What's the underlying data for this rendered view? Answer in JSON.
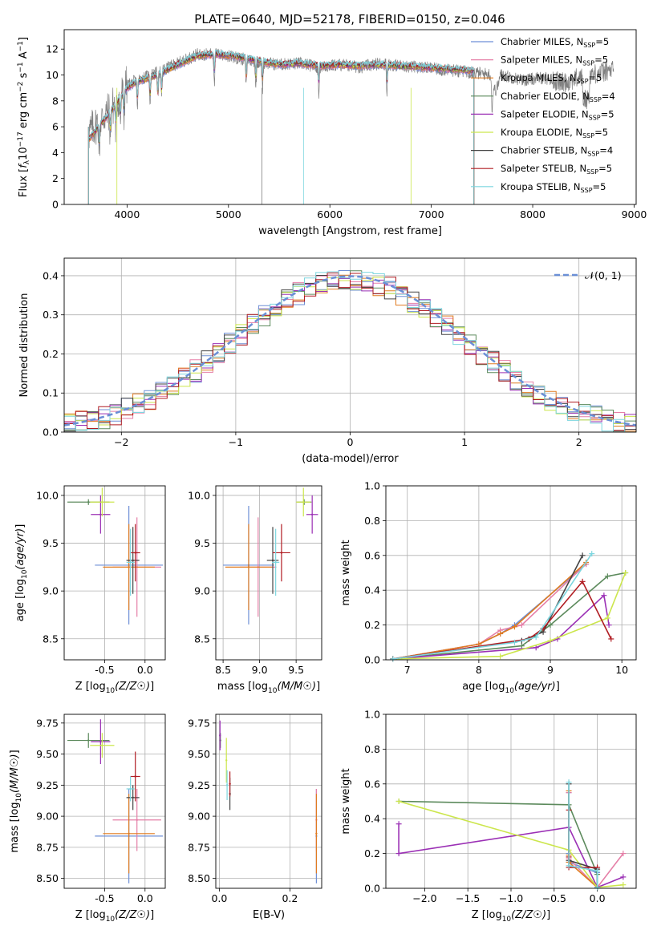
{
  "figure_title": "PLATE=0640, MJD=52178, FIBERID=0150, z=0.046",
  "model_colors": {
    "Chabrier MILES": "#6e8fd6",
    "Salpeter MILES": "#e57fa7",
    "Kroupa MILES": "#e07b20",
    "Chabrier ELODIE": "#5c8a5c",
    "Salpeter ELODIE": "#9b30b5",
    "Kroupa ELODIE": "#cce64d",
    "Chabrier STELIB": "#444444",
    "Salpeter STELIB": "#b01c22",
    "Kroupa STELIB": "#7dd6df"
  },
  "chart_data": [
    {
      "id": "spectrum",
      "type": "line",
      "title": "PLATE=0640, MJD=52178, FIBERID=0150, z=0.046",
      "xlabel": "wavelength [Angstrom, rest frame]",
      "ylabel": "Flux [f_λ 10^-17 erg cm^-2 s^-1 A^-1]",
      "xlim": [
        3380,
        9020
      ],
      "ylim": [
        0,
        13.5
      ],
      "xticks": [
        4000,
        5000,
        6000,
        7000,
        8000,
        9000
      ],
      "yticks": [
        0,
        2,
        4,
        6,
        8,
        10,
        12
      ],
      "legend_position": "upper right",
      "legend": [
        {
          "label": "Chabrier MILES, N",
          "sub": "SSP",
          "eq": "=5"
        },
        {
          "label": "Salpeter MILES, N",
          "sub": "SSP",
          "eq": "=5"
        },
        {
          "label": "Kroupa MILES, N",
          "sub": "SSP",
          "eq": "=5"
        },
        {
          "label": "Chabrier ELODIE, N",
          "sub": "SSP",
          "eq": "=4"
        },
        {
          "label": "Salpeter ELODIE, N",
          "sub": "SSP",
          "eq": "=5"
        },
        {
          "label": "Kroupa ELODIE, N",
          "sub": "SSP",
          "eq": "=5"
        },
        {
          "label": "Chabrier STELIB, N",
          "sub": "SSP",
          "eq": "=4"
        },
        {
          "label": "Salpeter STELIB, N",
          "sub": "SSP",
          "eq": "=5"
        },
        {
          "label": "Kroupa STELIB, N",
          "sub": "SSP",
          "eq": "=5"
        }
      ],
      "observed_spectrum_envelope": {
        "x": [
          3620,
          3700,
          3800,
          3900,
          4000,
          4100,
          4300,
          4500,
          4700,
          4900,
          5100,
          5300,
          5500,
          5700,
          5900,
          6100,
          6300,
          6500,
          6700,
          6900,
          7100,
          7300,
          7500,
          7700,
          7900,
          8100,
          8300,
          8500,
          8800
        ],
        "y": [
          5.5,
          6.2,
          7.0,
          8.0,
          9.2,
          9.6,
          10.2,
          10.9,
          11.6,
          11.6,
          11.3,
          11.0,
          10.8,
          10.9,
          10.6,
          10.8,
          10.6,
          10.9,
          10.7,
          10.6,
          10.4,
          10.3,
          10.1,
          10.0,
          9.6,
          9.8,
          9.4,
          9.9,
          10.4
        ]
      },
      "model_fit": {
        "x": [
          3620,
          3700,
          3800,
          3900,
          4000,
          4100,
          4300,
          4500,
          4700,
          4900,
          5100,
          5300,
          5500,
          5700,
          5900,
          6100,
          6300,
          6500,
          6700,
          6900,
          7100,
          7300,
          7420
        ],
        "y": [
          5.0,
          5.8,
          6.8,
          7.8,
          9.0,
          9.5,
          10.0,
          10.8,
          11.5,
          11.6,
          11.4,
          11.1,
          10.8,
          10.9,
          10.7,
          10.8,
          10.7,
          10.8,
          10.7,
          10.6,
          10.5,
          10.4,
          10.3
        ]
      },
      "x_range_models": [
        3620,
        7420
      ],
      "x_range_observed": [
        3620,
        8800
      ]
    },
    {
      "id": "residuals",
      "type": "line",
      "xlabel": "(data-model)/error",
      "ylabel": "Normed distribution",
      "xlim": [
        -2.5,
        2.5
      ],
      "ylim": [
        0,
        0.445
      ],
      "xticks": [
        -2,
        -1,
        0,
        1,
        2
      ],
      "yticks": [
        0.0,
        0.1,
        0.2,
        0.3,
        0.4
      ],
      "grid": true,
      "legend_position": "upper right",
      "legend_label": "𝒩(0, 1)",
      "reference_curve": "normal(0,1)",
      "histogram_bin_width": 0.1,
      "histogram_range": [
        -2.5,
        2.5
      ],
      "series_style": "step histograms, one per model (9 models)"
    },
    {
      "id": "age_vs_z",
      "type": "scatter",
      "xlabel": "Z [log10(Z/Z☉)]",
      "ylabel": "age [log10(age/yr)]",
      "xlim": [
        -1.0,
        0.25
      ],
      "ylim": [
        8.28,
        10.1
      ],
      "xticks": [
        -0.5,
        0.0
      ],
      "yticks": [
        8.5,
        9.0,
        9.5,
        10.0
      ],
      "grid": true,
      "points": [
        {
          "model": "Chabrier MILES",
          "x": -0.2,
          "y": 9.27,
          "xerr": 0.42,
          "yerr": 0.62
        },
        {
          "model": "Salpeter MILES",
          "x": -0.1,
          "y": 9.25,
          "xerr": 0.3,
          "yerr": 0.52
        },
        {
          "model": "Kroupa MILES",
          "x": -0.2,
          "y": 9.25,
          "xerr": 0.32,
          "yerr": 0.45
        },
        {
          "model": "Chabrier ELODIE",
          "x": -0.7,
          "y": 9.93,
          "xerr": 0.26,
          "yerr": 0.03
        },
        {
          "model": "Salpeter ELODIE",
          "x": -0.55,
          "y": 9.8,
          "xerr": 0.12,
          "yerr": 0.2
        },
        {
          "model": "Kroupa ELODIE",
          "x": -0.53,
          "y": 9.93,
          "xerr": 0.15,
          "yerr": 0.15
        },
        {
          "model": "Chabrier STELIB",
          "x": -0.15,
          "y": 9.32,
          "xerr": 0.08,
          "yerr": 0.35
        },
        {
          "model": "Salpeter STELIB",
          "x": -0.12,
          "y": 9.4,
          "xerr": 0.06,
          "yerr": 0.3
        },
        {
          "model": "Kroupa STELIB",
          "x": -0.18,
          "y": 9.3,
          "xerr": 0.05,
          "yerr": 0.35
        }
      ]
    },
    {
      "id": "age_vs_mass",
      "type": "scatter",
      "xlabel": "mass [log10(M/M☉)]",
      "ylabel": "",
      "xlim": [
        8.4,
        9.85
      ],
      "ylim": [
        8.28,
        10.1
      ],
      "xticks": [
        8.5,
        9.0,
        9.5
      ],
      "yticks": [
        8.5,
        9.0,
        9.5,
        10.0
      ],
      "grid": true,
      "points": [
        {
          "model": "Chabrier MILES",
          "x": 8.85,
          "y": 9.27,
          "xerr": 0.35,
          "yerr": 0.62
        },
        {
          "model": "Salpeter MILES",
          "x": 8.98,
          "y": 9.25,
          "xerr": 0.25,
          "yerr": 0.52
        },
        {
          "model": "Kroupa MILES",
          "x": 8.85,
          "y": 9.25,
          "xerr": 0.32,
          "yerr": 0.45
        },
        {
          "model": "Chabrier ELODIE",
          "x": 9.61,
          "y": 9.93,
          "xerr": 0.1,
          "yerr": 0.03
        },
        {
          "model": "Salpeter ELODIE",
          "x": 9.72,
          "y": 9.8,
          "xerr": 0.08,
          "yerr": 0.2
        },
        {
          "model": "Kroupa ELODIE",
          "x": 9.6,
          "y": 9.93,
          "xerr": 0.1,
          "yerr": 0.15
        },
        {
          "model": "Chabrier STELIB",
          "x": 9.18,
          "y": 9.32,
          "xerr": 0.08,
          "yerr": 0.35
        },
        {
          "model": "Salpeter STELIB",
          "x": 9.3,
          "y": 9.4,
          "xerr": 0.12,
          "yerr": 0.3
        },
        {
          "model": "Kroupa STELIB",
          "x": 9.22,
          "y": 9.3,
          "xerr": 0.05,
          "yerr": 0.35
        }
      ]
    },
    {
      "id": "weight_vs_age",
      "type": "line",
      "xlabel": "age [log10(age/yr)]",
      "ylabel": "mass weight",
      "xlim": [
        6.7,
        10.2
      ],
      "ylim": [
        0,
        1
      ],
      "xticks": [
        7,
        8,
        9,
        10
      ],
      "yticks": [
        0.0,
        0.2,
        0.4,
        0.6,
        0.8,
        1.0
      ],
      "grid": true,
      "series": [
        {
          "model": "Chabrier MILES",
          "x": [
            6.8,
            8.0,
            8.3,
            8.5,
            9.5
          ],
          "y": [
            0.005,
            0.09,
            0.15,
            0.2,
            0.55
          ]
        },
        {
          "model": "Salpeter MILES",
          "x": [
            6.8,
            8.0,
            8.3,
            8.6,
            9.5
          ],
          "y": [
            0.005,
            0.09,
            0.17,
            0.2,
            0.55
          ]
        },
        {
          "model": "Kroupa MILES",
          "x": [
            6.8,
            8.0,
            8.3,
            8.5,
            9.5
          ],
          "y": [
            0.005,
            0.09,
            0.15,
            0.19,
            0.56
          ]
        },
        {
          "model": "Chabrier ELODIE",
          "x": [
            6.8,
            8.6,
            9.0,
            9.8,
            10.05
          ],
          "y": [
            0.005,
            0.08,
            0.2,
            0.48,
            0.5
          ]
        },
        {
          "model": "Salpeter ELODIE",
          "x": [
            6.8,
            8.8,
            9.1,
            9.75,
            9.82
          ],
          "y": [
            0.005,
            0.07,
            0.12,
            0.37,
            0.2
          ]
        },
        {
          "model": "Kroupa ELODIE",
          "x": [
            6.8,
            8.3,
            9.0,
            9.8,
            10.05
          ],
          "y": [
            0.005,
            0.02,
            0.11,
            0.24,
            0.5
          ]
        },
        {
          "model": "Chabrier STELIB",
          "x": [
            6.8,
            8.6,
            8.9,
            9.45
          ],
          "y": [
            0.005,
            0.11,
            0.16,
            0.6
          ]
        },
        {
          "model": "Salpeter STELIB",
          "x": [
            6.8,
            8.7,
            8.9,
            9.45,
            9.85
          ],
          "y": [
            0.005,
            0.12,
            0.18,
            0.45,
            0.12
          ]
        },
        {
          "model": "Kroupa STELIB",
          "x": [
            6.8,
            8.5,
            8.8,
            9.58
          ],
          "y": [
            0.005,
            0.1,
            0.13,
            0.61
          ]
        }
      ]
    },
    {
      "id": "mass_vs_z",
      "type": "scatter",
      "xlabel": "Z [log10(Z/Z☉)]",
      "ylabel": "mass [log10(M/M☉)]",
      "xlim": [
        -1.0,
        0.25
      ],
      "ylim": [
        8.42,
        9.82
      ],
      "xticks": [
        -0.5,
        0.0
      ],
      "yticks": [
        8.5,
        8.75,
        9.0,
        9.25,
        9.5,
        9.75
      ],
      "grid": true,
      "points": [
        {
          "model": "Chabrier MILES",
          "x": -0.2,
          "y": 8.84,
          "xerr": 0.42,
          "yerr": 0.38
        },
        {
          "model": "Salpeter MILES",
          "x": -0.1,
          "y": 8.97,
          "xerr": 0.3,
          "yerr": 0.25
        },
        {
          "model": "Kroupa MILES",
          "x": -0.2,
          "y": 8.86,
          "xerr": 0.32,
          "yerr": 0.32
        },
        {
          "model": "Chabrier ELODIE",
          "x": -0.7,
          "y": 9.61,
          "xerr": 0.26,
          "yerr": 0.06
        },
        {
          "model": "Salpeter ELODIE",
          "x": -0.55,
          "y": 9.6,
          "xerr": 0.12,
          "yerr": 0.18
        },
        {
          "model": "Kroupa ELODIE",
          "x": -0.53,
          "y": 9.57,
          "xerr": 0.15,
          "yerr": 0.1
        },
        {
          "model": "Chabrier STELIB",
          "x": -0.15,
          "y": 9.15,
          "xerr": 0.08,
          "yerr": 0.1
        },
        {
          "model": "Salpeter STELIB",
          "x": -0.12,
          "y": 9.32,
          "xerr": 0.06,
          "yerr": 0.2
        },
        {
          "model": "Kroupa STELIB",
          "x": -0.18,
          "y": 9.22,
          "xerr": 0.05,
          "yerr": 0.1
        }
      ]
    },
    {
      "id": "mass_vs_ebv",
      "type": "scatter",
      "xlabel": "E(B-V)",
      "ylabel": "",
      "xlim": [
        -0.01,
        0.29
      ],
      "ylim": [
        8.42,
        9.82
      ],
      "xticks": [
        0.0,
        0.2
      ],
      "yticks": [
        8.5,
        8.75,
        9.0,
        9.25,
        9.5,
        9.75
      ],
      "grid": true,
      "points": [
        {
          "model": "Chabrier MILES",
          "x": 0.275,
          "y": 8.84,
          "yerr": 0.38
        },
        {
          "model": "Salpeter MILES",
          "x": 0.275,
          "y": 8.97,
          "yerr": 0.25
        },
        {
          "model": "Kroupa MILES",
          "x": 0.275,
          "y": 8.86,
          "yerr": 0.32
        },
        {
          "model": "Chabrier ELODIE",
          "x": 0.003,
          "y": 9.61,
          "yerr": 0.06
        },
        {
          "model": "Salpeter ELODIE",
          "x": 0.002,
          "y": 9.65,
          "yerr": 0.12
        },
        {
          "model": "Kroupa ELODIE",
          "x": 0.02,
          "y": 9.45,
          "yerr": 0.18
        },
        {
          "model": "Chabrier STELIB",
          "x": 0.03,
          "y": 9.18,
          "yerr": 0.13
        },
        {
          "model": "Salpeter STELIB",
          "x": 0.03,
          "y": 9.26,
          "yerr": 0.1
        },
        {
          "model": "Kroupa STELIB",
          "x": 0.022,
          "y": 9.25,
          "yerr": 0.12
        }
      ]
    },
    {
      "id": "weight_vs_z",
      "type": "line",
      "xlabel": "Z [log10(Z/Z☉)]",
      "ylabel": "mass weight",
      "xlim": [
        -2.45,
        0.45
      ],
      "ylim": [
        0,
        1
      ],
      "xticks": [
        -2.0,
        -1.5,
        -1.0,
        -0.5,
        0.0
      ],
      "yticks": [
        0.0,
        0.2,
        0.4,
        0.6,
        0.8,
        1.0
      ],
      "grid": true,
      "series": [
        {
          "model": "Chabrier MILES",
          "x": [
            -0.33,
            -0.33,
            -0.33,
            0.0,
            0.0
          ],
          "y": [
            0.55,
            0.2,
            0.15,
            0.09,
            0.005
          ]
        },
        {
          "model": "Salpeter MILES",
          "x": [
            -0.33,
            -0.33,
            0.0,
            0.3
          ],
          "y": [
            0.55,
            0.17,
            0.005,
            0.2
          ]
        },
        {
          "model": "Kroupa MILES",
          "x": [
            -0.33,
            -0.33,
            -0.33,
            0.0
          ],
          "y": [
            0.56,
            0.19,
            0.15,
            0.005
          ]
        },
        {
          "model": "Chabrier ELODIE",
          "x": [
            -2.3,
            -0.33,
            0.0,
            0.0
          ],
          "y": [
            0.5,
            0.48,
            0.08,
            0.005
          ]
        },
        {
          "model": "Salpeter ELODIE",
          "x": [
            -2.3,
            -2.3,
            -0.33,
            0.0,
            0.3
          ],
          "y": [
            0.37,
            0.2,
            0.35,
            0.005,
            0.065
          ]
        },
        {
          "model": "Kroupa ELODIE",
          "x": [
            -2.3,
            -0.33,
            0.0,
            0.3
          ],
          "y": [
            0.5,
            0.22,
            0.005,
            0.02
          ]
        },
        {
          "model": "Chabrier STELIB",
          "x": [
            -0.33,
            -0.33,
            0.0,
            0.0
          ],
          "y": [
            0.6,
            0.16,
            0.11,
            0.005
          ]
        },
        {
          "model": "Salpeter STELIB",
          "x": [
            -0.33,
            -0.33,
            -0.33,
            0.0
          ],
          "y": [
            0.45,
            0.18,
            0.12,
            0.12
          ]
        },
        {
          "model": "Kroupa STELIB",
          "x": [
            -0.33,
            -0.33,
            0.0,
            0.0
          ],
          "y": [
            0.61,
            0.13,
            0.1,
            0.005
          ]
        }
      ]
    }
  ]
}
